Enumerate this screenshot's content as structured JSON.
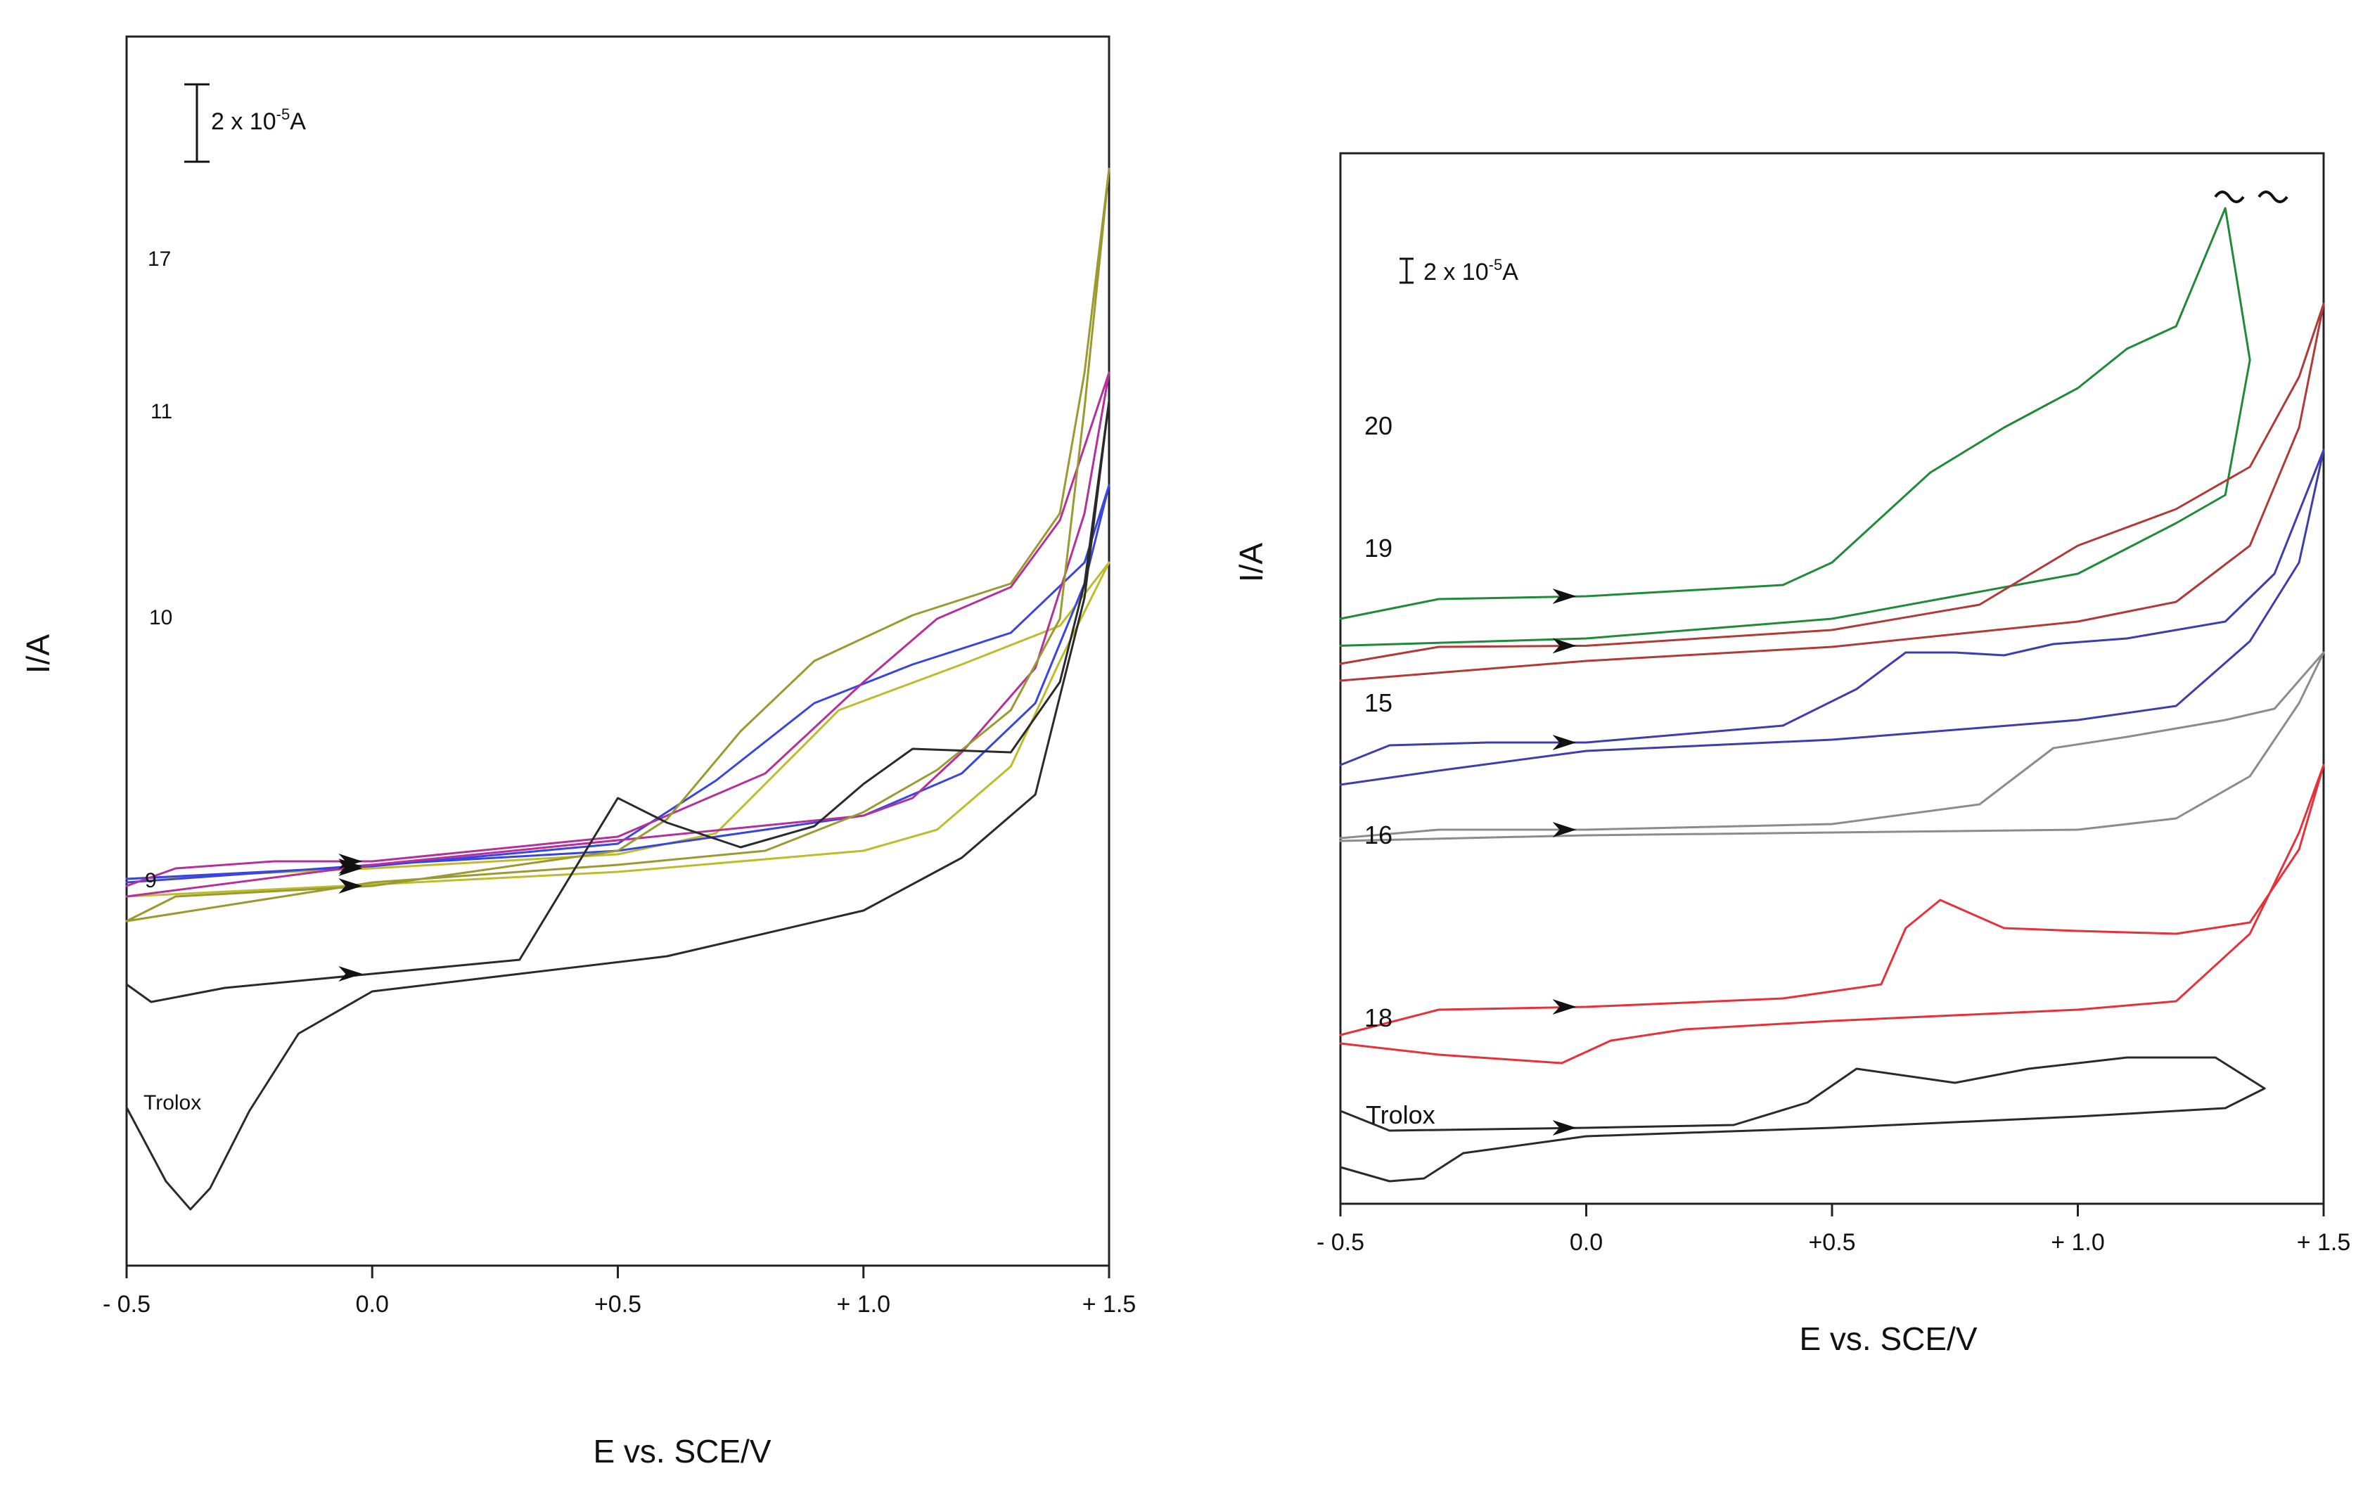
{
  "chart_data": [
    {
      "type": "line",
      "panel": "left",
      "xlabel": "E vs. SCE/V",
      "ylabel": "I/A",
      "xlim": [
        -0.5,
        1.5
      ],
      "xticks": [
        -0.5,
        0.0,
        0.5,
        1.0,
        1.5
      ],
      "xtick_labels": [
        "- 0.5",
        "0.0",
        "+0.5",
        "+ 1.0",
        "+ 1.5"
      ],
      "scale_bar": {
        "label": "2 x 10",
        "exp": "-5",
        "unit": "A"
      },
      "series": [
        {
          "name": "17",
          "color": "#bdbd2a",
          "forward": [
            [
              -0.5,
              0.8
            ],
            [
              0.0,
              0.95
            ],
            [
              0.5,
              1.15
            ],
            [
              0.7,
              1.45
            ],
            [
              0.8,
              2.15
            ],
            [
              0.95,
              3.2
            ],
            [
              1.2,
              3.85
            ],
            [
              1.4,
              4.4
            ],
            [
              1.5,
              5.3
            ]
          ],
          "reverse": [
            [
              1.5,
              5.3
            ],
            [
              1.4,
              3.9
            ],
            [
              1.3,
              2.4
            ],
            [
              1.15,
              1.5
            ],
            [
              1.0,
              1.2
            ],
            [
              0.5,
              0.9
            ],
            [
              0.0,
              0.72
            ],
            [
              -0.5,
              0.55
            ]
          ]
        },
        {
          "name": "11",
          "color": "#3a45e0",
          "forward": [
            [
              -0.5,
              0.8
            ],
            [
              0.0,
              0.98
            ],
            [
              0.5,
              1.3
            ],
            [
              0.7,
              2.2
            ],
            [
              0.9,
              3.3
            ],
            [
              1.1,
              3.85
            ],
            [
              1.3,
              4.3
            ],
            [
              1.45,
              5.3
            ],
            [
              1.5,
              6.4
            ]
          ],
          "reverse": [
            [
              1.5,
              6.4
            ],
            [
              1.45,
              5.0
            ],
            [
              1.35,
              3.3
            ],
            [
              1.2,
              2.3
            ],
            [
              1.0,
              1.7
            ],
            [
              0.5,
              1.2
            ],
            [
              0.0,
              1.0
            ],
            [
              -0.5,
              0.75
            ]
          ]
        },
        {
          "name": "10",
          "color": "#b5309b",
          "forward": [
            [
              -0.5,
              0.7
            ],
            [
              -0.4,
              0.95
            ],
            [
              -0.2,
              1.05
            ],
            [
              0.0,
              1.05
            ],
            [
              0.5,
              1.4
            ],
            [
              0.8,
              2.3
            ],
            [
              1.0,
              3.6
            ],
            [
              1.15,
              4.5
            ],
            [
              1.3,
              4.95
            ],
            [
              1.4,
              5.9
            ],
            [
              1.5,
              8.0
            ]
          ],
          "reverse": [
            [
              1.5,
              8.0
            ],
            [
              1.45,
              6.0
            ],
            [
              1.35,
              3.8
            ],
            [
              1.2,
              2.6
            ],
            [
              1.1,
              1.95
            ],
            [
              1.0,
              1.7
            ],
            [
              0.5,
              1.35
            ],
            [
              0.0,
              1.0
            ],
            [
              -0.5,
              0.55
            ]
          ]
        },
        {
          "name": "9",
          "color": "#9a9a30",
          "forward": [
            [
              -0.5,
              0.2
            ],
            [
              -0.4,
              0.55
            ],
            [
              0.0,
              0.7
            ],
            [
              0.5,
              1.2
            ],
            [
              0.6,
              1.65
            ],
            [
              0.75,
              2.9
            ],
            [
              0.9,
              3.9
            ],
            [
              1.1,
              4.55
            ],
            [
              1.3,
              5.0
            ],
            [
              1.4,
              6.0
            ],
            [
              1.45,
              8.0
            ],
            [
              1.5,
              10.9
            ]
          ],
          "reverse": [
            [
              1.5,
              10.9
            ],
            [
              1.45,
              7.5
            ],
            [
              1.4,
              4.5
            ],
            [
              1.3,
              3.2
            ],
            [
              1.15,
              2.35
            ],
            [
              1.0,
              1.75
            ],
            [
              0.8,
              1.2
            ],
            [
              0.5,
              1.0
            ],
            [
              0.0,
              0.75
            ],
            [
              -0.5,
              0.2
            ]
          ]
        },
        {
          "name": "Trolox",
          "color": "#2a2a2a",
          "forward": [
            [
              -0.5,
              -0.7
            ],
            [
              -0.45,
              -0.95
            ],
            [
              -0.3,
              -0.75
            ],
            [
              0.0,
              -0.55
            ],
            [
              0.3,
              -0.35
            ],
            [
              0.4,
              0.8
            ],
            [
              0.5,
              1.95
            ],
            [
              0.6,
              1.6
            ],
            [
              0.75,
              1.25
            ],
            [
              0.9,
              1.55
            ],
            [
              1.0,
              2.15
            ],
            [
              1.1,
              2.65
            ],
            [
              1.3,
              2.6
            ],
            [
              1.4,
              3.6
            ],
            [
              1.45,
              5.0
            ],
            [
              1.5,
              7.6
            ]
          ],
          "reverse": [
            [
              1.5,
              7.6
            ],
            [
              1.45,
              4.8
            ],
            [
              1.35,
              2.0
            ],
            [
              1.2,
              1.1
            ],
            [
              1.0,
              0.35
            ],
            [
              0.6,
              -0.3
            ],
            [
              0.3,
              -0.55
            ],
            [
              0.0,
              -0.8
            ],
            [
              -0.15,
              -1.4
            ],
            [
              -0.25,
              -2.5
            ],
            [
              -0.33,
              -3.6
            ],
            [
              -0.37,
              -3.9
            ],
            [
              -0.42,
              -3.5
            ],
            [
              -0.5,
              -2.45
            ]
          ]
        }
      ]
    },
    {
      "type": "line",
      "panel": "right",
      "xlabel": "E vs. SCE/V",
      "ylabel": "I/A",
      "xlim": [
        -0.5,
        1.5
      ],
      "xticks": [
        -0.5,
        0.0,
        0.5,
        1.0,
        1.5
      ],
      "xtick_labels": [
        "- 0.5",
        "0.0",
        "+0.5",
        "+ 1.0",
        "+ 1.5"
      ],
      "scale_bar": {
        "label": "2 x 10",
        "exp": "-5",
        "unit": "A"
      },
      "series": [
        {
          "name": "20",
          "color": "#1f8a3a",
          "forward": [
            [
              -0.5,
              3.2
            ],
            [
              -0.3,
              3.55
            ],
            [
              0.0,
              3.6
            ],
            [
              0.4,
              3.8
            ],
            [
              0.5,
              4.2
            ],
            [
              0.7,
              5.8
            ],
            [
              0.85,
              6.6
            ],
            [
              1.0,
              7.3
            ],
            [
              1.1,
              8.0
            ],
            [
              1.2,
              8.4
            ],
            [
              1.3,
              10.5
            ]
          ],
          "reverse": [
            [
              1.38,
              10.5
            ],
            [
              1.35,
              7.8
            ],
            [
              1.3,
              5.4
            ],
            [
              1.2,
              4.9
            ],
            [
              1.1,
              4.45
            ],
            [
              1.0,
              4.0
            ],
            [
              0.5,
              3.2
            ],
            [
              0.0,
              2.85
            ],
            [
              -0.5,
              2.72
            ]
          ]
        },
        {
          "name": "19",
          "color": "#b03a3a",
          "forward": [
            [
              -0.5,
              2.4
            ],
            [
              -0.3,
              2.7
            ],
            [
              0.0,
              2.72
            ],
            [
              0.5,
              3.0
            ],
            [
              0.8,
              3.45
            ],
            [
              1.0,
              4.5
            ],
            [
              1.2,
              5.15
            ],
            [
              1.35,
              5.9
            ],
            [
              1.45,
              7.5
            ],
            [
              1.5,
              8.8
            ]
          ],
          "reverse": [
            [
              1.5,
              8.8
            ],
            [
              1.45,
              6.6
            ],
            [
              1.35,
              4.5
            ],
            [
              1.2,
              3.5
            ],
            [
              1.0,
              3.15
            ],
            [
              0.5,
              2.7
            ],
            [
              0.0,
              2.45
            ],
            [
              -0.5,
              2.1
            ]
          ]
        },
        {
          "name": "15",
          "color": "#3d3dad",
          "forward": [
            [
              -0.5,
              0.6
            ],
            [
              -0.4,
              0.95
            ],
            [
              -0.2,
              1.0
            ],
            [
              0.0,
              1.0
            ],
            [
              0.4,
              1.3
            ],
            [
              0.55,
              1.95
            ],
            [
              0.65,
              2.6
            ],
            [
              0.75,
              2.6
            ],
            [
              0.85,
              2.55
            ],
            [
              0.95,
              2.75
            ],
            [
              1.1,
              2.85
            ],
            [
              1.3,
              3.15
            ],
            [
              1.4,
              4.0
            ],
            [
              1.5,
              6.2
            ]
          ],
          "reverse": [
            [
              1.5,
              6.2
            ],
            [
              1.45,
              4.2
            ],
            [
              1.35,
              2.8
            ],
            [
              1.2,
              1.65
            ],
            [
              1.0,
              1.4
            ],
            [
              0.5,
              1.05
            ],
            [
              0.0,
              0.85
            ],
            [
              -0.3,
              0.5
            ],
            [
              -0.5,
              0.25
            ]
          ]
        },
        {
          "name": "16",
          "color": "#8c8c8c",
          "forward": [
            [
              -0.5,
              -0.7
            ],
            [
              -0.3,
              -0.55
            ],
            [
              0.0,
              -0.55
            ],
            [
              0.5,
              -0.45
            ],
            [
              0.8,
              -0.1
            ],
            [
              0.95,
              0.9
            ],
            [
              1.1,
              1.1
            ],
            [
              1.3,
              1.4
            ],
            [
              1.4,
              1.6
            ],
            [
              1.5,
              2.6
            ]
          ],
          "reverse": [
            [
              1.5,
              2.6
            ],
            [
              1.45,
              1.7
            ],
            [
              1.35,
              0.4
            ],
            [
              1.2,
              -0.35
            ],
            [
              1.0,
              -0.55
            ],
            [
              0.5,
              -0.6
            ],
            [
              0.0,
              -0.65
            ],
            [
              -0.5,
              -0.75
            ]
          ]
        },
        {
          "name": "18",
          "color": "#e8303a",
          "forward": [
            [
              -0.5,
              -4.2
            ],
            [
              -0.3,
              -3.75
            ],
            [
              0.0,
              -3.7
            ],
            [
              0.4,
              -3.55
            ],
            [
              0.6,
              -3.3
            ],
            [
              0.65,
              -2.3
            ],
            [
              0.72,
              -1.8
            ],
            [
              0.85,
              -2.3
            ],
            [
              1.0,
              -2.35
            ],
            [
              1.2,
              -2.4
            ],
            [
              1.35,
              -2.2
            ],
            [
              1.45,
              -0.9
            ],
            [
              1.5,
              0.6
            ]
          ],
          "reverse": [
            [
              1.5,
              0.6
            ],
            [
              1.45,
              -0.6
            ],
            [
              1.35,
              -2.4
            ],
            [
              1.2,
              -3.6
            ],
            [
              1.0,
              -3.75
            ],
            [
              0.5,
              -3.95
            ],
            [
              0.2,
              -4.1
            ],
            [
              0.05,
              -4.3
            ],
            [
              -0.05,
              -4.7
            ],
            [
              -0.3,
              -4.55
            ],
            [
              -0.5,
              -4.35
            ]
          ]
        },
        {
          "name": "Trolox",
          "color": "#2a2a2a",
          "forward": [
            [
              -0.5,
              -5.55
            ],
            [
              -0.4,
              -5.9
            ],
            [
              0.0,
              -5.85
            ],
            [
              0.3,
              -5.8
            ],
            [
              0.45,
              -5.4
            ],
            [
              0.55,
              -4.8
            ],
            [
              0.75,
              -5.05
            ],
            [
              0.9,
              -4.8
            ],
            [
              1.1,
              -4.6
            ],
            [
              1.28,
              -4.6
            ]
          ],
          "reverse": [
            [
              1.42,
              -4.6
            ],
            [
              1.38,
              -5.15
            ],
            [
              1.3,
              -5.5
            ],
            [
              1.0,
              -5.65
            ],
            [
              0.5,
              -5.85
            ],
            [
              0.0,
              -6.0
            ],
            [
              -0.25,
              -6.3
            ],
            [
              -0.33,
              -6.75
            ],
            [
              -0.4,
              -6.8
            ],
            [
              -0.5,
              -6.55
            ]
          ]
        }
      ]
    }
  ]
}
